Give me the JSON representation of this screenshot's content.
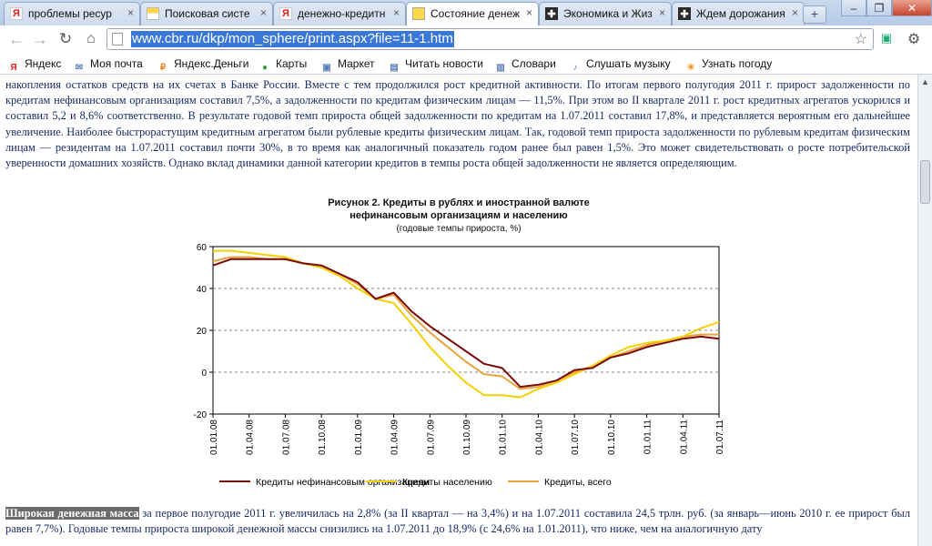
{
  "tabs": [
    {
      "icon": "yandex-icon",
      "title": "проблемы ресур",
      "active": false
    },
    {
      "icon": "search-icon",
      "title": "Поисковая систе",
      "active": false
    },
    {
      "icon": "yandex-icon",
      "title": "денежно-кредитн",
      "active": false
    },
    {
      "icon": "doc-icon",
      "title": "Состояние денеж",
      "active": true
    },
    {
      "icon": "economy-icon",
      "title": "Экономика и Жиз",
      "active": false
    },
    {
      "icon": "economy-icon",
      "title": "Ждем дорожания",
      "active": false
    }
  ],
  "browser": {
    "url": "www.cbr.ru/dkp/mon_sphere/print.aspx?file=11-1.htm",
    "close_glyph": "×",
    "newtab_glyph": "+"
  },
  "bookmarks": [
    {
      "label": "Яндекс",
      "icon": "yandex-icon",
      "color": "#e31b1b"
    },
    {
      "label": "Моя почта",
      "icon": "mail-icon",
      "color": "#5a7fb8"
    },
    {
      "label": "Яндекс.Деньги",
      "icon": "money-icon",
      "color": "#f08a1c"
    },
    {
      "label": "Карты",
      "icon": "maps-icon",
      "color": "#3a9b3a"
    },
    {
      "label": "Маркет",
      "icon": "market-icon",
      "color": "#5a7fb8"
    },
    {
      "label": "Читать новости",
      "icon": "news-icon",
      "color": "#5a7fb8"
    },
    {
      "label": "Словари",
      "icon": "dictionary-icon",
      "color": "#5a7fb8"
    },
    {
      "label": "Слушать музыку",
      "icon": "music-icon",
      "color": "#5a7fb8"
    },
    {
      "label": "Узнать погоду",
      "icon": "weather-icon",
      "color": "#f08a1c"
    }
  ],
  "article": {
    "paragraph1": "накопления остатков средств на их счетах в Банке России. Вместе с тем продолжился рост кредитной активности. По итогам первого полугодия 2011 г. прирост задолженности по кредитам нефинансовым организациям составил 7,5%, а задолженности по кредитам физическим лицам — 11,5%. При этом во II квартале 2011 г. рост кредитных агрегатов ускорился и составил 5,2 и 8,6% соответственно. В результате годовой темп прироста общей задолженности по кредитам на 1.07.2011 составил 17,8%, и представляется вероятным его дальнейшее увеличение. Наиболее быстрорастущим кредитным агрегатом были рублевые кредиты физическим лицам. Так, годовой темп прироста задолженности по рублевым кредитам физическим лицам — резидентам на 1.07.2011 составил почти 30%, в то время как аналогичный показатель годом ранее был равен 1,5%. Это может свидетельствовать о росте потребительской уверенности домашних хозяйств. Однако вклад динамики данной категории кредитов в темпы роста общей задолженности не является определяющим.",
    "figure_title": "Рисунок 2. Кредиты в рублях и иностранной валюте",
    "figure_title2": "нефинансовым организациям и населению",
    "figure_subtitle": "(годовые темпы прироста, %)",
    "paragraph2_bold": "Широкая денежная масса",
    "paragraph2_rest": " за первое полугодие 2011 г. увеличилась на 2,8% (за II квартал — на 3,4%) и на 1.07.2011 составила 24,5 трлн. руб. (за январь—июнь 2010 г. ее прирост был равен 7,7%). Годовые темпы прироста широкой денежной массы снизились на 1.07.2011 до 18,9% (с 24,6% на 1.01.2011), что ниже, чем на аналогичную дату"
  },
  "chart_data": {
    "type": "line",
    "title": "Рисунок 2. Кредиты в рублях и иностранной валюте нефинансовым организациям и населению",
    "subtitle": "(годовые темпы прироста, %)",
    "ylim": [
      -20,
      60
    ],
    "yticks": [
      -20,
      0,
      20,
      40,
      60
    ],
    "x_tick_labels": [
      "01.01.08",
      "01.04.08",
      "01.07.08",
      "01.10.08",
      "01.01.09",
      "01.04.09",
      "01.07.09",
      "01.10.09",
      "01.01.10",
      "01.04.10",
      "01.07.10",
      "01.10.10",
      "01.01.11",
      "01.04.11",
      "01.07.11"
    ],
    "grid": "horizontal dashed",
    "legend_position": "bottom",
    "series": [
      {
        "name": "Кредиты нефинансовым организациям",
        "color": "#7a0a0a",
        "values": [
          51,
          54,
          54,
          54,
          54,
          52,
          51,
          47,
          43,
          35,
          38,
          29,
          22,
          16,
          10,
          4,
          2,
          -7,
          -6,
          -4,
          1,
          2,
          7,
          9,
          12,
          14,
          16,
          17,
          16
        ]
      },
      {
        "name": "Кредиты населению",
        "color": "#f5d000",
        "values": [
          58,
          58,
          57,
          56,
          55,
          52,
          50,
          46,
          40,
          35,
          33,
          23,
          12,
          3,
          -5,
          -11,
          -11,
          -12,
          -8,
          -5,
          -1,
          3,
          8,
          12,
          14,
          15,
          17,
          21,
          24
        ]
      },
      {
        "name": "Кредиты, всего",
        "color": "#e8a33c",
        "values": [
          53,
          55,
          55,
          54,
          54,
          52,
          51,
          47,
          42,
          35,
          37,
          27,
          19,
          12,
          5,
          -1,
          -2,
          -8,
          -7,
          -4,
          0,
          3,
          7,
          10,
          13,
          15,
          17,
          18,
          18
        ]
      }
    ]
  }
}
